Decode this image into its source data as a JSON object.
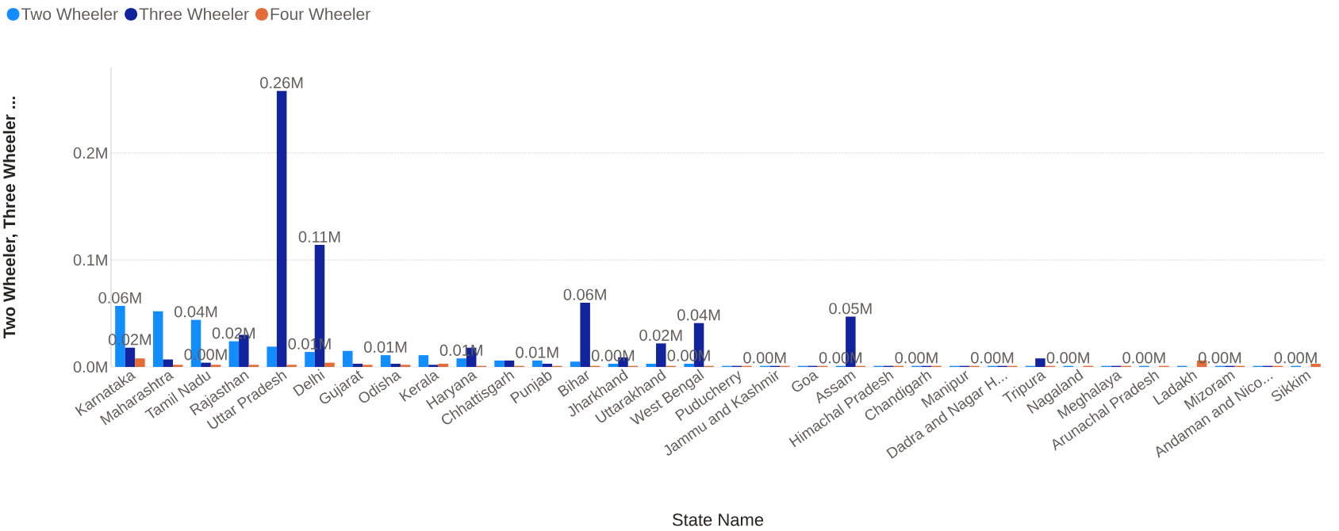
{
  "chart_data": {
    "type": "bar",
    "xlabel": "State Name",
    "ylabel": "Two Wheeler, Three Wheeler ...",
    "categories": [
      "Karnataka",
      "Maharashtra",
      "Tamil Nadu",
      "Rajasthan",
      "Uttar Pradesh",
      "Delhi",
      "Gujarat",
      "Odisha",
      "Kerala",
      "Haryana",
      "Chhattisgarh",
      "Punjab",
      "Bihar",
      "Jharkhand",
      "Uttarakhand",
      "West Bengal",
      "Puducherry",
      "Jammu and Kashmir",
      "Goa",
      "Assam",
      "Himachal Pradesh",
      "Chandigarh",
      "Manipur",
      "Dadra and Nagar H...",
      "Tripura",
      "Nagaland",
      "Meghalaya",
      "Arunachal Pradesh",
      "Ladakh",
      "Mizoram",
      "Andaman and Nico...",
      "Sikkim"
    ],
    "series": [
      {
        "name": "Two Wheeler",
        "color": "#118dff",
        "values": [
          0.057,
          0.052,
          0.044,
          0.024,
          0.019,
          0.014,
          0.015,
          0.011,
          0.011,
          0.008,
          0.006,
          0.006,
          0.005,
          0.003,
          0.003,
          0.003,
          0.001,
          0.001,
          0.001,
          0.001,
          0.001,
          0.001,
          0.001,
          0.001,
          0.001,
          0.001,
          0.001,
          0.001,
          0.001,
          0.001,
          0.001,
          0.001
        ],
        "value_labels": [
          "0.06M",
          null,
          "0.04M",
          "0.02M",
          null,
          "0.01M",
          null,
          "0.01M",
          null,
          "0.01M",
          null,
          "0.01M",
          null,
          "0.00M",
          null,
          "0.00M",
          null,
          "0.00M",
          null,
          "0.00M",
          null,
          "0.00M",
          null,
          "0.00M",
          null,
          "0.00M",
          null,
          "0.00M",
          null,
          "0.00M",
          null,
          "0.00M"
        ]
      },
      {
        "name": "Three Wheeler",
        "color": "#12239e",
        "values": [
          0.018,
          0.007,
          0.004,
          0.03,
          0.258,
          0.114,
          0.003,
          0.003,
          0.002,
          0.018,
          0.006,
          0.003,
          0.06,
          0.009,
          0.022,
          0.041,
          0.001,
          0.001,
          0.001,
          0.047,
          0.001,
          0.001,
          0.001,
          0.001,
          0.008,
          null,
          0.001,
          null,
          null,
          0.001,
          0.001,
          null
        ],
        "value_labels": [
          "0.02M",
          null,
          "0.00M",
          null,
          "0.26M",
          "0.11M",
          null,
          null,
          null,
          null,
          null,
          null,
          "0.06M",
          null,
          "0.02M",
          "0.04M",
          null,
          null,
          null,
          "0.05M",
          null,
          null,
          null,
          null,
          null,
          null,
          null,
          null,
          null,
          null,
          null,
          null
        ]
      },
      {
        "name": "Four Wheeler",
        "color": "#e66c37",
        "values": [
          0.008,
          0.002,
          0.002,
          0.002,
          0.002,
          0.004,
          0.002,
          0.002,
          0.003,
          0.001,
          0.001,
          0.001,
          0.001,
          0.001,
          0.001,
          0.001,
          0.001,
          0.001,
          0.001,
          0.001,
          0.001,
          0.001,
          0.001,
          0.001,
          0.001,
          0.001,
          0.001,
          0.001,
          0.006,
          0.001,
          0.001,
          0.003
        ]
      }
    ],
    "ylim": [
      0,
      0.28
    ],
    "yticks": [
      {
        "value": 0,
        "label": "0.0M"
      },
      {
        "value": 0.1,
        "label": "0.1M"
      },
      {
        "value": 0.2,
        "label": "0.2M"
      }
    ],
    "grid": "y",
    "legend": "top left"
  }
}
